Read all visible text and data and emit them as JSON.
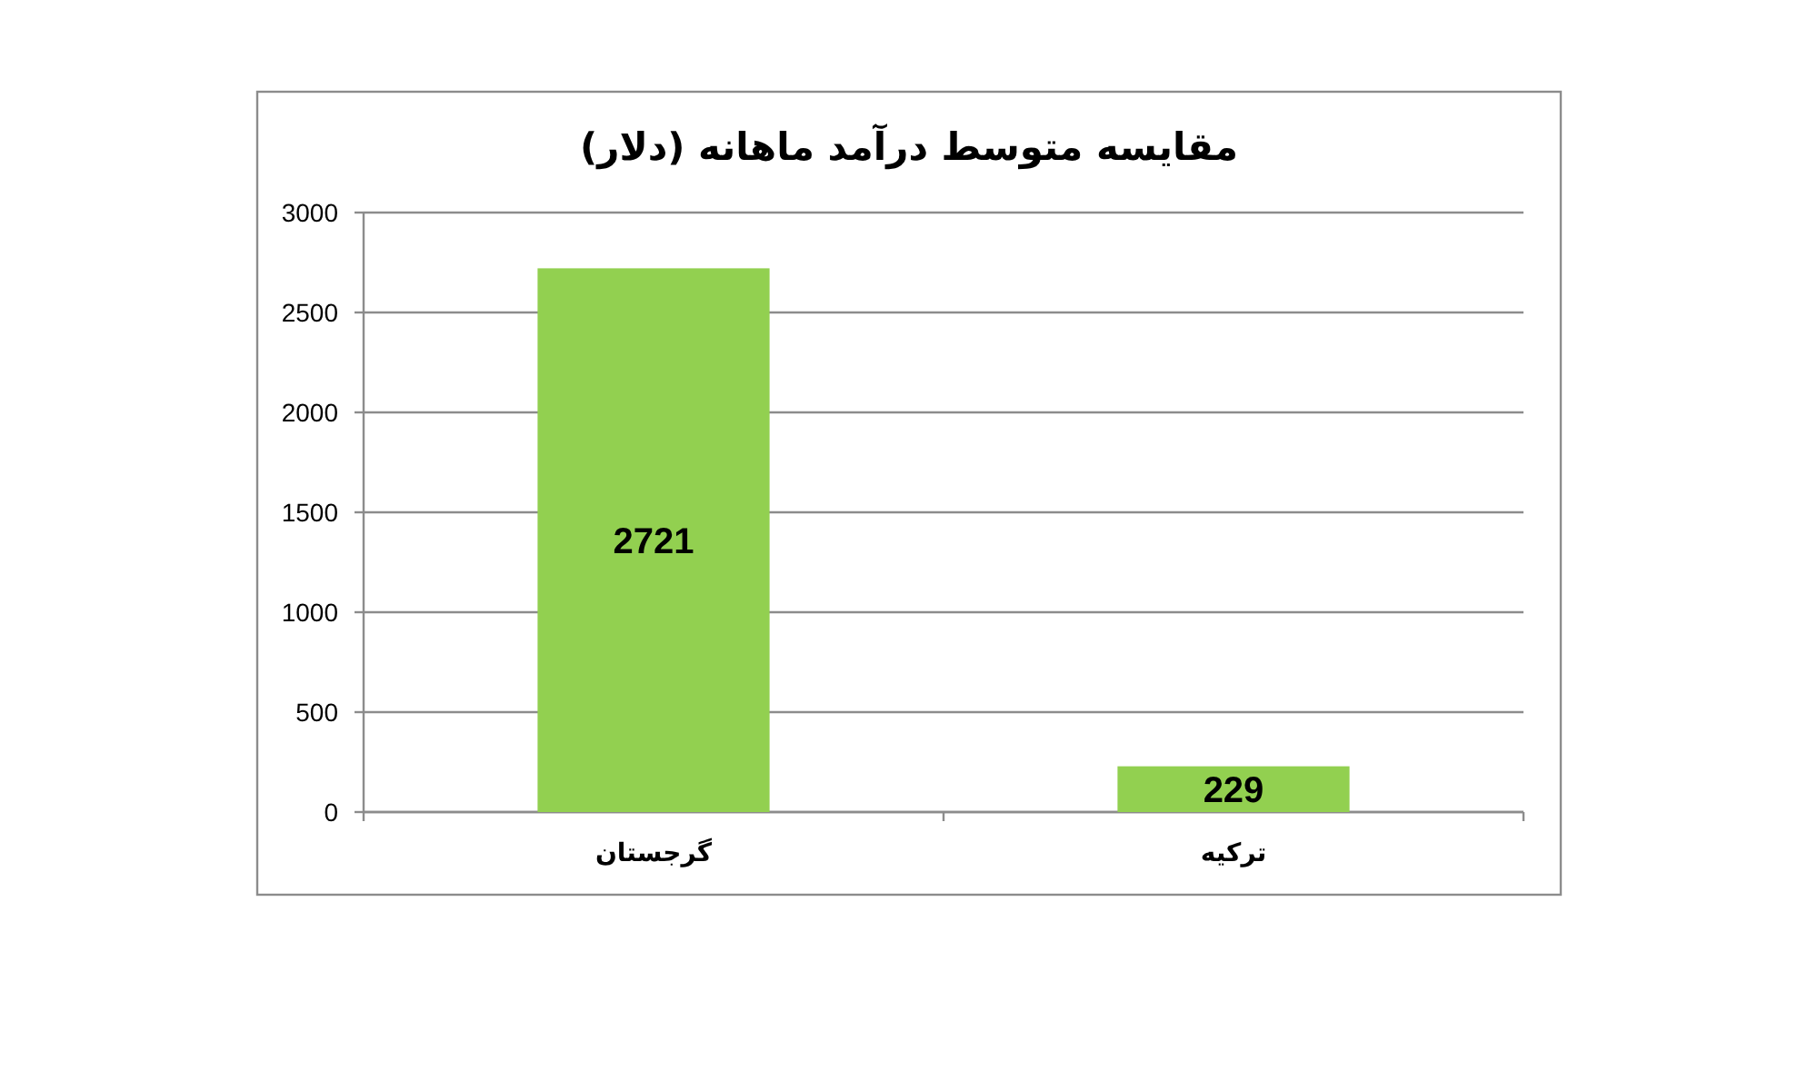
{
  "chart_data": {
    "type": "bar",
    "title": "مقایسه متوسط درآمد ماهانه (دلار)",
    "categories": [
      "گرجستان",
      "ترکیه"
    ],
    "values": [
      2721,
      229
    ],
    "color": "#92d050",
    "ylim": [
      0,
      3000
    ],
    "yticks": [
      0,
      500,
      1000,
      1500,
      2000,
      2500,
      3000
    ],
    "grid": "y",
    "data_labels": true
  }
}
